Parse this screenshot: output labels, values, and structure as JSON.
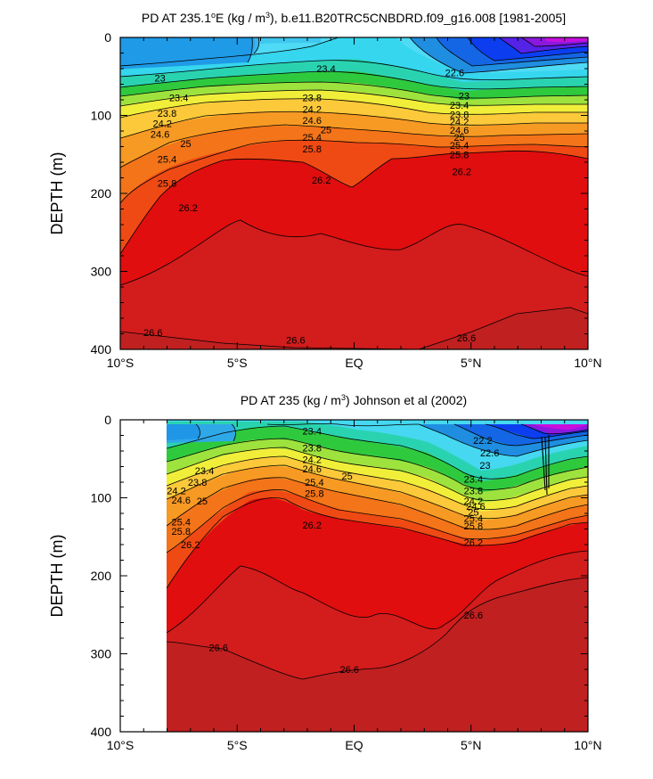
{
  "chart_data": [
    {
      "type": "contour",
      "title_prefix": "PD AT 235.1",
      "title_degree": "o",
      "title_mid": "E (kg / m",
      "title_sup": "3",
      "title_suffix": "), b.e11.B20TRC5CNBDRD.f09_g16.008 [1981-2005]",
      "ylabel": "DEPTH (m)",
      "xlabel": "",
      "xlim": [
        -10,
        10
      ],
      "ylim": [
        0,
        400
      ],
      "y_reversed": true,
      "x_ticks": [
        {
          "value": -10,
          "label": "10°S"
        },
        {
          "value": -5,
          "label": "5°S"
        },
        {
          "value": 0,
          "label": "EQ"
        },
        {
          "value": 5,
          "label": "5°N"
        },
        {
          "value": 10,
          "label": "10°N"
        }
      ],
      "y_ticks": [
        {
          "value": 0,
          "label": "0"
        },
        {
          "value": 100,
          "label": "100"
        },
        {
          "value": 200,
          "label": "200"
        },
        {
          "value": 300,
          "label": "300"
        },
        {
          "value": 400,
          "label": "400"
        }
      ],
      "contour_labels": [
        {
          "x": -8.3,
          "y": 52,
          "label": "23"
        },
        {
          "x": -7.5,
          "y": 77,
          "label": "23.4"
        },
        {
          "x": -8.0,
          "y": 97,
          "label": "23.8"
        },
        {
          "x": -8.2,
          "y": 110,
          "label": "24.2"
        },
        {
          "x": -8.3,
          "y": 124,
          "label": "24.6"
        },
        {
          "x": -7.2,
          "y": 136,
          "label": "25"
        },
        {
          "x": -8.0,
          "y": 156,
          "label": "25.4"
        },
        {
          "x": -8.0,
          "y": 187,
          "label": "25.8"
        },
        {
          "x": -7.1,
          "y": 218,
          "label": "26.2"
        },
        {
          "x": -8.6,
          "y": 378,
          "label": "26.6"
        },
        {
          "x": -1.2,
          "y": 40,
          "label": "23.4"
        },
        {
          "x": -1.8,
          "y": 77,
          "label": "23.8"
        },
        {
          "x": -1.8,
          "y": 92,
          "label": "24.2"
        },
        {
          "x": -1.8,
          "y": 106,
          "label": "24.6"
        },
        {
          "x": -1.2,
          "y": 118,
          "label": "25"
        },
        {
          "x": -1.8,
          "y": 128,
          "label": "25.4"
        },
        {
          "x": -1.8,
          "y": 143,
          "label": "25.8"
        },
        {
          "x": -1.4,
          "y": 183,
          "label": "26.2"
        },
        {
          "x": -2.5,
          "y": 388,
          "label": "26.6"
        },
        {
          "x": 4.3,
          "y": 45,
          "label": "22.6"
        },
        {
          "x": 4.7,
          "y": 75,
          "label": "23"
        },
        {
          "x": 4.5,
          "y": 87,
          "label": "23.4"
        },
        {
          "x": 4.5,
          "y": 99,
          "label": "23.8"
        },
        {
          "x": 4.5,
          "y": 108,
          "label": "24.2"
        },
        {
          "x": 4.5,
          "y": 119,
          "label": "24.6"
        },
        {
          "x": 4.5,
          "y": 128,
          "label": "25"
        },
        {
          "x": 4.5,
          "y": 138,
          "label": "25.4"
        },
        {
          "x": 4.5,
          "y": 150,
          "label": "25.8"
        },
        {
          "x": 4.6,
          "y": 172,
          "label": "26.2"
        },
        {
          "x": 4.8,
          "y": 385,
          "label": "26.6"
        }
      ]
    },
    {
      "type": "contour",
      "title_prefix": "PD AT 235 (kg / m",
      "title_sup": "3",
      "title_suffix": ") Johnson et al (2002)",
      "ylabel": "DEPTH (m)",
      "xlabel": "",
      "xlim": [
        -10,
        10
      ],
      "ylim": [
        0,
        400
      ],
      "y_reversed": true,
      "data_x_range": [
        -8,
        10
      ],
      "x_ticks": [
        {
          "value": -10,
          "label": "10°S"
        },
        {
          "value": -5,
          "label": "5°S"
        },
        {
          "value": 0,
          "label": "EQ"
        },
        {
          "value": 5,
          "label": "5°N"
        },
        {
          "value": 10,
          "label": "10°N"
        }
      ],
      "y_ticks": [
        {
          "value": 0,
          "label": "0"
        },
        {
          "value": 100,
          "label": "100"
        },
        {
          "value": 200,
          "label": "200"
        },
        {
          "value": 300,
          "label": "300"
        },
        {
          "value": 400,
          "label": "400"
        }
      ],
      "contour_labels": [
        {
          "x": -6.4,
          "y": 65,
          "label": "23.4"
        },
        {
          "x": -6.7,
          "y": 80,
          "label": "23.8"
        },
        {
          "x": -7.6,
          "y": 91,
          "label": "24.2"
        },
        {
          "x": -7.4,
          "y": 103,
          "label": "24.6"
        },
        {
          "x": -6.5,
          "y": 104,
          "label": "25"
        },
        {
          "x": -7.4,
          "y": 131,
          "label": "25.4"
        },
        {
          "x": -7.4,
          "y": 143,
          "label": "25.8"
        },
        {
          "x": -7.0,
          "y": 160,
          "label": "26.2"
        },
        {
          "x": -5.8,
          "y": 292,
          "label": "26.6"
        },
        {
          "x": -1.8,
          "y": 14,
          "label": "23.4"
        },
        {
          "x": -1.8,
          "y": 36,
          "label": "23.8"
        },
        {
          "x": -1.8,
          "y": 51,
          "label": "24.2"
        },
        {
          "x": -1.8,
          "y": 63,
          "label": "24.6"
        },
        {
          "x": -0.3,
          "y": 72,
          "label": "25"
        },
        {
          "x": -1.7,
          "y": 80,
          "label": "25.4"
        },
        {
          "x": -1.7,
          "y": 94,
          "label": "25.8"
        },
        {
          "x": -1.8,
          "y": 135,
          "label": "26.2"
        },
        {
          "x": -0.2,
          "y": 320,
          "label": "26.6"
        },
        {
          "x": 5.5,
          "y": 26,
          "label": "22.2"
        },
        {
          "x": 5.8,
          "y": 42,
          "label": "22.6"
        },
        {
          "x": 5.6,
          "y": 58,
          "label": "23"
        },
        {
          "x": 5.1,
          "y": 76,
          "label": "23.4"
        },
        {
          "x": 5.1,
          "y": 91,
          "label": "23.8"
        },
        {
          "x": 5.1,
          "y": 104,
          "label": "24.2"
        },
        {
          "x": 5.2,
          "y": 111,
          "label": "24.6"
        },
        {
          "x": 5.1,
          "y": 118,
          "label": "25"
        },
        {
          "x": 5.1,
          "y": 126,
          "label": "25.4"
        },
        {
          "x": 5.1,
          "y": 136,
          "label": "25.8"
        },
        {
          "x": 5.1,
          "y": 157,
          "label": "26.2"
        },
        {
          "x": 5.1,
          "y": 250,
          "label": "26.6"
        }
      ]
    }
  ]
}
